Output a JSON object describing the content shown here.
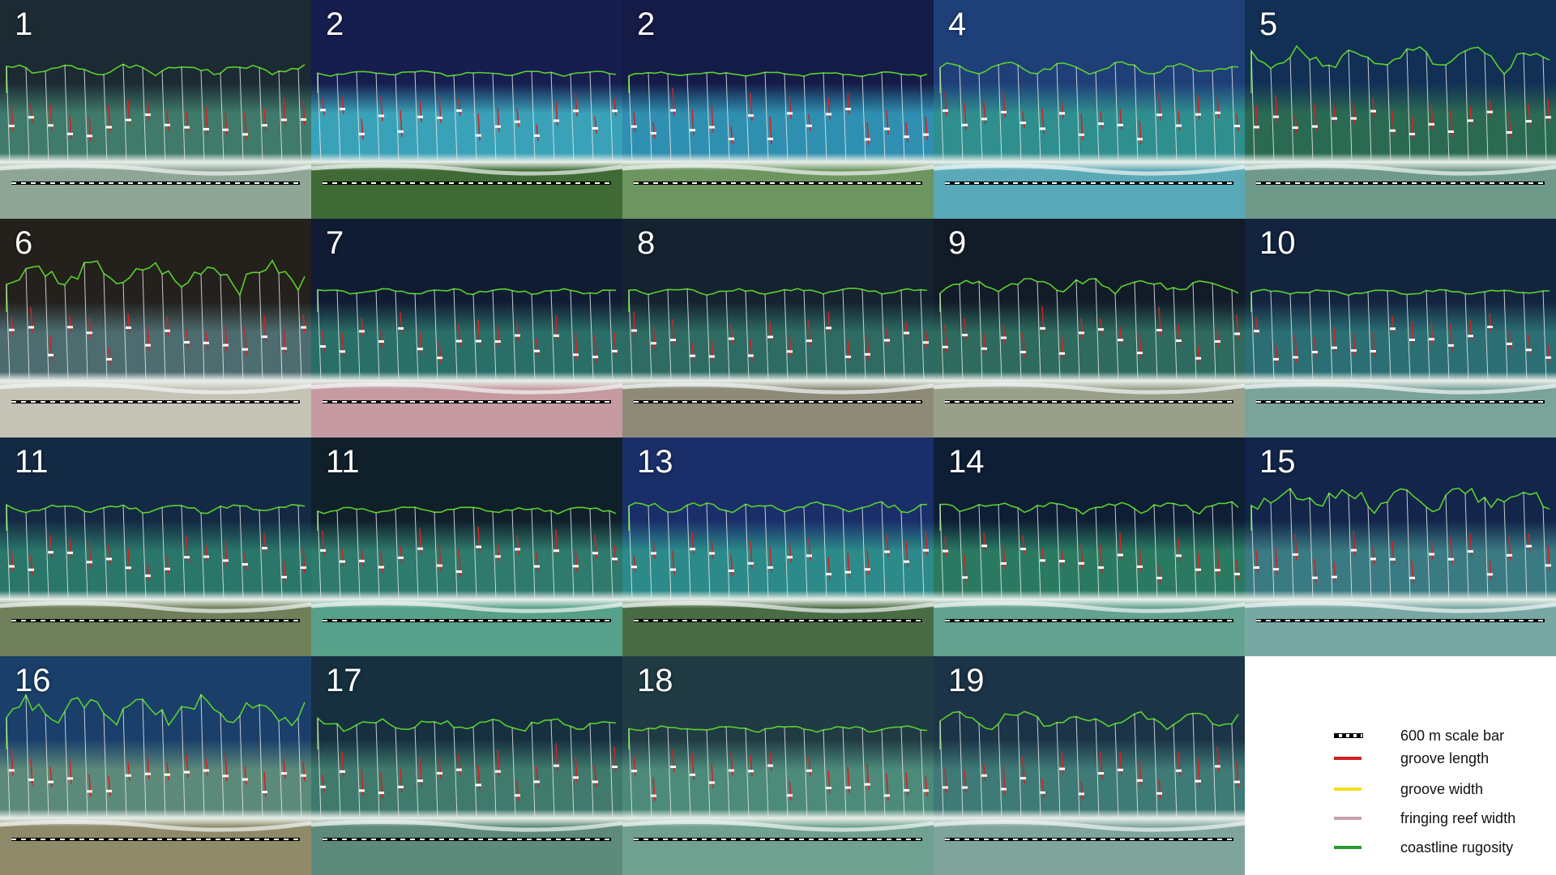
{
  "panels": [
    {
      "label": "1",
      "ocean": "#1c2a33",
      "reef": "#3f7a6a",
      "land": "#8fa596",
      "coast_amp": 10,
      "seed": 1
    },
    {
      "label": "2",
      "ocean": "#161d4f",
      "reef": "#3aa2b8",
      "land": "#3f6a35",
      "coast_amp": 5,
      "seed": 2
    },
    {
      "label": "2",
      "ocean": "#141b47",
      "reef": "#2f8fb0",
      "land": "#6d9560",
      "coast_amp": 4,
      "seed": 3
    },
    {
      "label": "4",
      "ocean": "#1f3f78",
      "reef": "#2f8f8f",
      "land": "#5aa9b8",
      "coast_amp": 12,
      "seed": 4
    },
    {
      "label": "5",
      "ocean": "#123055",
      "reef": "#2a6a52",
      "land": "#6f9a8a",
      "coast_amp": 24,
      "seed": 5
    },
    {
      "label": "6",
      "ocean": "#24201c",
      "reef": "#4c6c70",
      "land": "#c5c2b6",
      "coast_amp": 28,
      "seed": 6
    },
    {
      "label": "7",
      "ocean": "#101c33",
      "reef": "#2a6e68",
      "land": "#c59aa0",
      "coast_amp": 6,
      "seed": 7
    },
    {
      "label": "8",
      "ocean": "#152230",
      "reef": "#2d6b63",
      "land": "#8d8b78",
      "coast_amp": 6,
      "seed": 8
    },
    {
      "label": "9",
      "ocean": "#121c28",
      "reef": "#2e6a5e",
      "land": "#9a9f8a",
      "coast_amp": 14,
      "seed": 9
    },
    {
      "label": "10",
      "ocean": "#13243f",
      "reef": "#2b6f74",
      "land": "#7aa39a",
      "coast_amp": 5,
      "seed": 10
    },
    {
      "label": "11",
      "ocean": "#142a44",
      "reef": "#2a766a",
      "land": "#6f7f5a",
      "coast_amp": 8,
      "seed": 11
    },
    {
      "label": "11",
      "ocean": "#10202b",
      "reef": "#2e7a6c",
      "land": "#57a089",
      "coast_amp": 6,
      "seed": 12
    },
    {
      "label": "13",
      "ocean": "#1a2f6a",
      "reef": "#2c8a8a",
      "land": "#4a6c45",
      "coast_amp": 10,
      "seed": 13
    },
    {
      "label": "14",
      "ocean": "#0e1e35",
      "reef": "#2a7a62",
      "land": "#63a28f",
      "coast_amp": 10,
      "seed": 14
    },
    {
      "label": "15",
      "ocean": "#13254a",
      "reef": "#3a7a82",
      "land": "#78a8a4",
      "coast_amp": 22,
      "seed": 15
    },
    {
      "label": "16",
      "ocean": "#1a3f6a",
      "reef": "#5c8a7a",
      "land": "#8f8a6a",
      "coast_amp": 30,
      "seed": 16
    },
    {
      "label": "17",
      "ocean": "#163040",
      "reef": "#3f7a6c",
      "land": "#5d8a7a",
      "coast_amp": 12,
      "seed": 17
    },
    {
      "label": "18",
      "ocean": "#203b44",
      "reef": "#4c8a7a",
      "land": "#6fa090",
      "coast_amp": 6,
      "seed": 18
    },
    {
      "label": "19",
      "ocean": "#1c3448",
      "reef": "#3e7a76",
      "land": "#7fa49c",
      "coast_amp": 18,
      "seed": 19
    }
  ],
  "legend": {
    "items": [
      {
        "label": "600 m scale bar",
        "color": "#000000",
        "style": "dash"
      },
      {
        "label": "groove length",
        "color": "#d02020",
        "style": "solid"
      },
      {
        "label": "groove width",
        "color": "#f0e020",
        "style": "solid"
      },
      {
        "label": "fringing reef width",
        "color": "#c9a2b2",
        "style": "solid"
      },
      {
        "label": "coastline rugosity",
        "color": "#2a9a30",
        "style": "solid"
      }
    ]
  },
  "colors": {
    "coastline": "#5ad02c",
    "reef_width_line": "#e8e8e8",
    "groove": "#d62020",
    "groove_width": "#ffffff",
    "scale_bar_dark": "#000000",
    "scale_bar_light": "#ffffff"
  }
}
